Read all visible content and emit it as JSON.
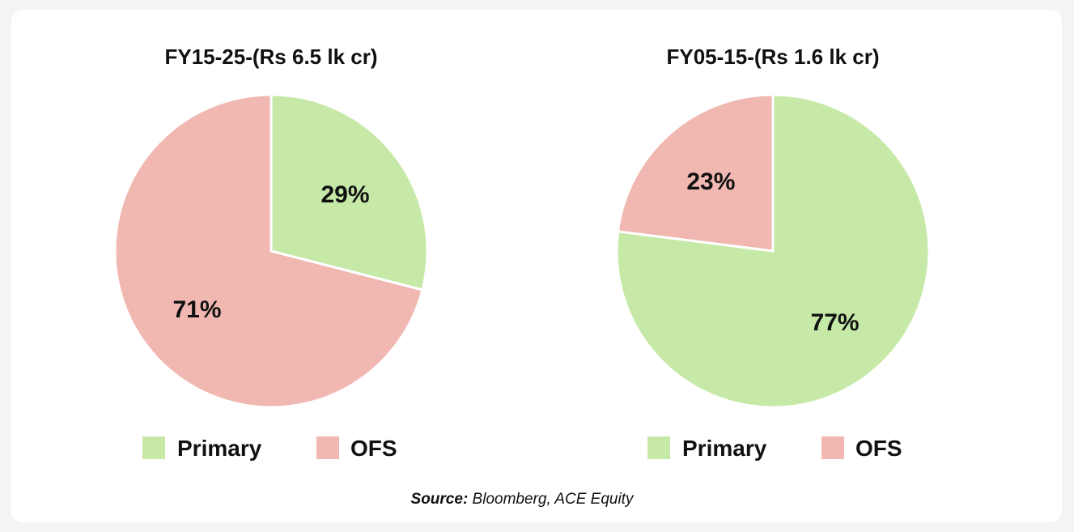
{
  "chart_data": [
    {
      "type": "pie",
      "title": "FY15-25-(Rs 6.5 lk cr)",
      "slices": [
        {
          "label": "Primary",
          "value": 29,
          "display": "29%",
          "color": "#c6e9a8"
        },
        {
          "label": "OFS",
          "value": 71,
          "display": "71%",
          "color": "#f1b8b2"
        }
      ],
      "legend": [
        "Primary",
        "OFS"
      ],
      "legend_position": "bottom"
    },
    {
      "type": "pie",
      "title": "FY05-15-(Rs 1.6 lk cr)",
      "slices": [
        {
          "label": "Primary",
          "value": 77,
          "display": "77%",
          "color": "#c6e9a8"
        },
        {
          "label": "OFS",
          "value": 23,
          "display": "23%",
          "color": "#f1b8b2"
        }
      ],
      "legend": [
        "Primary",
        "OFS"
      ],
      "legend_position": "bottom"
    }
  ],
  "source": {
    "label": "Source:",
    "text": " Bloomberg, ACE Equity"
  }
}
